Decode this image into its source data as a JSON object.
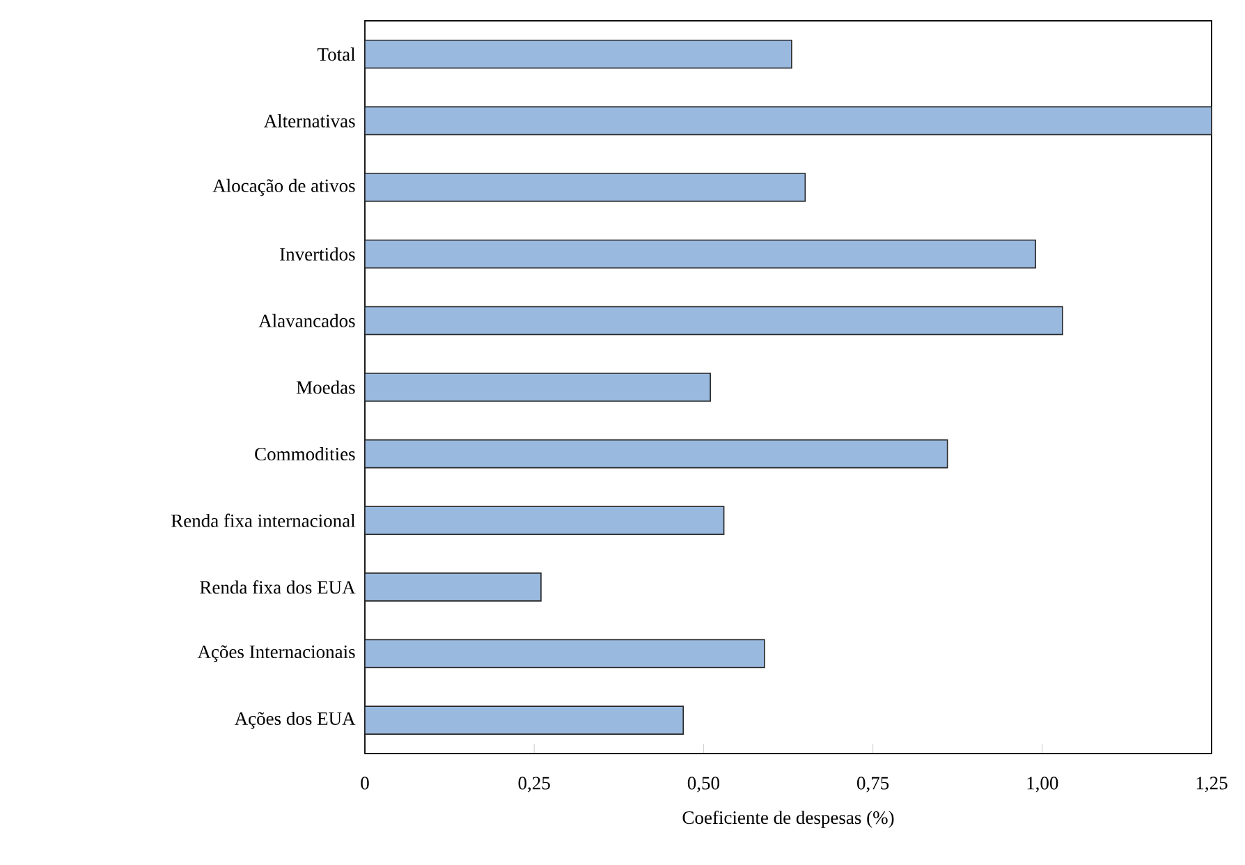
{
  "chart_data": {
    "type": "bar",
    "orientation": "horizontal",
    "xlabel": "Coeficiente de despesas (%)",
    "categories": [
      "Total",
      "Alternativas",
      "Alocação de ativos",
      "Invertidos",
      "Alavancados",
      "Moedas",
      "Commodities",
      "Renda fixa internacional",
      "Renda fixa dos EUA",
      "Ações Internacionais",
      "Ações dos EUA"
    ],
    "values": [
      0.63,
      1.25,
      0.65,
      0.99,
      1.03,
      0.51,
      0.86,
      0.53,
      0.26,
      0.59,
      0.47
    ],
    "color": "#9ab9df",
    "xlim": [
      0,
      1.25
    ],
    "xticks": [
      0,
      {
        "value": 0.25,
        "label": "0,25"
      },
      {
        "value": 0.5,
        "label": "0,50"
      },
      {
        "value": 0.75,
        "label": "0,75"
      },
      {
        "value": 1.0,
        "label": "1,00"
      },
      {
        "value": 1.25,
        "label": "1,25"
      }
    ]
  }
}
